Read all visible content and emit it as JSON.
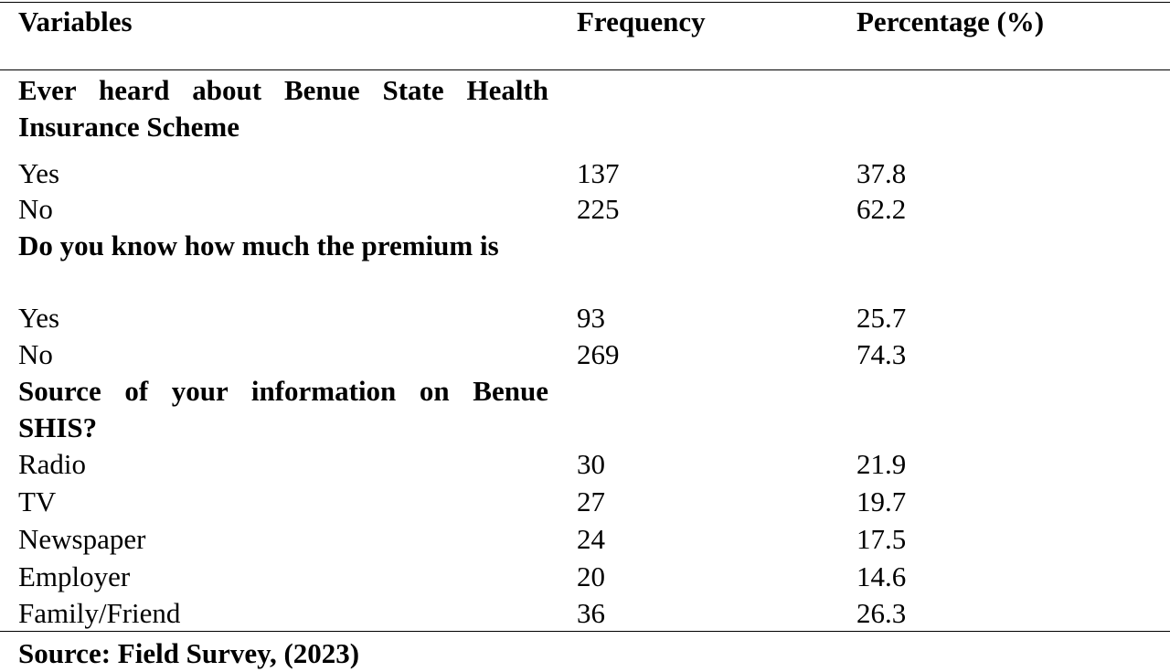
{
  "table": {
    "headers": {
      "variables": "Variables",
      "frequency": "Frequency",
      "percentage": "Percentage (%)"
    },
    "sections": [
      {
        "title": "Ever heard about Benue State Health Insurance Scheme",
        "rows": [
          {
            "label": "Yes",
            "frequency": "137",
            "percentage": "37.8"
          },
          {
            "label": "No",
            "frequency": "225",
            "percentage": "62.2"
          }
        ]
      },
      {
        "title": "Do you know how much the premium is",
        "rows": [
          {
            "label": "Yes",
            "frequency": "93",
            "percentage": "25.7"
          },
          {
            "label": "No",
            "frequency": "269",
            "percentage": "74.3"
          }
        ]
      },
      {
        "title": "Source of your information on Benue SHIS?",
        "rows": [
          {
            "label": "Radio",
            "frequency": "30",
            "percentage": "21.9"
          },
          {
            "label": "TV",
            "frequency": "27",
            "percentage": "19.7"
          },
          {
            "label": "Newspaper",
            "frequency": "24",
            "percentage": "17.5"
          },
          {
            "label": "Employer",
            "frequency": "20",
            "percentage": "14.6"
          },
          {
            "label": "Family/Friend",
            "frequency": "36",
            "percentage": "26.3"
          }
        ]
      }
    ],
    "source": "Source: Field Survey, (2023)"
  }
}
